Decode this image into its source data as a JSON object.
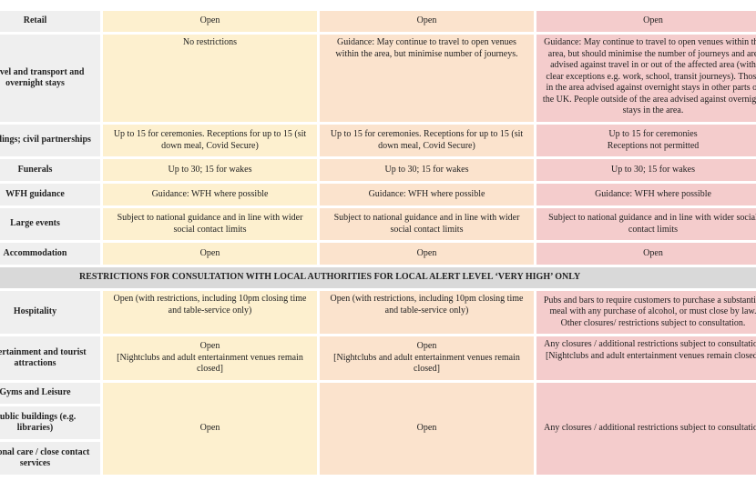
{
  "colors": {
    "label_bg": "#efefef",
    "medium": "#fdf0cf",
    "high": "#fbe3cd",
    "very_high": "#f4cccc",
    "section_bg": "#d9d9d9"
  },
  "rows": [
    {
      "label": "Retail",
      "medium": "Open",
      "high": "Open",
      "very_high": "Open"
    },
    {
      "label": "Travel and transport and overnight stays",
      "medium": "No restrictions",
      "high": "Guidance: May continue to travel to open venues within the area, but minimise number of journeys.",
      "very_high": "Guidance: May continue to travel to open venues within the area, but should minimise the number of journeys and are advised against travel in or out of the affected area (with clear exceptions e.g. work, school, transit journeys). Those in the area advised against overnight stays in other parts of the UK. People outside of the area advised against overnight stays in the area."
    },
    {
      "label": "Weddings; civil partnerships",
      "medium": "Up to 15 for ceremonies. Receptions for up to 15 (sit down meal, Covid Secure)",
      "high": "Up to 15 for ceremonies. Receptions for up to 15 (sit down meal, Covid Secure)",
      "very_high_1": "Up to 15 for ceremonies",
      "very_high_2": "Receptions not permitted"
    },
    {
      "label": "Funerals",
      "medium": "Up to 30; 15 for wakes",
      "high": "Up to 30; 15 for wakes",
      "very_high": "Up to 30; 15 for wakes"
    },
    {
      "label": "WFH guidance",
      "medium": "Guidance: WFH where possible",
      "high": "Guidance: WFH where possible",
      "very_high": "Guidance: WFH where possible"
    },
    {
      "label": "Large events",
      "medium": "Subject to national guidance and in line with wider social contact limits",
      "high": "Subject to national guidance and in line with wider social contact limits",
      "very_high": "Subject to national guidance and in line with wider social contact limits"
    },
    {
      "label": "Accommodation",
      "medium": "Open",
      "high": "Open",
      "very_high": "Open"
    }
  ],
  "section_header": "RESTRICTIONS FOR CONSULTATION WITH LOCAL AUTHORITIES FOR LOCAL ALERT LEVEL ‘VERY HIGH’ ONLY",
  "consult_rows": [
    {
      "label": "Hospitality",
      "medium": "Open (with restrictions, including 10pm closing time and table-service only)",
      "high": "Open (with restrictions, including 10pm closing time and table-service only)",
      "very_high_1": "Pubs and bars to require customers to purchase a substantial meal with any purchase of alcohol, or must close by law.",
      "very_high_2": "Other closures/ restrictions subject to consultation."
    },
    {
      "label": "Entertainment and tourist attractions",
      "medium_1": "Open",
      "medium_2": "[Nightclubs and adult entertainment venues remain closed]",
      "high_1": "Open",
      "high_2": "[Nightclubs and adult entertainment venues remain closed]",
      "very_high_1": "Any closures / additional restrictions subject to consultation",
      "very_high_2": "[Nightclubs and adult entertainment venues remain closed]"
    }
  ],
  "grouped": {
    "labels": [
      "Gyms and Leisure",
      "Public buildings (e.g. libraries)",
      "Personal care / close contact services"
    ],
    "medium": "Open",
    "high": "Open",
    "very_high": "Any closures / additional restrictions subject to consultation"
  }
}
